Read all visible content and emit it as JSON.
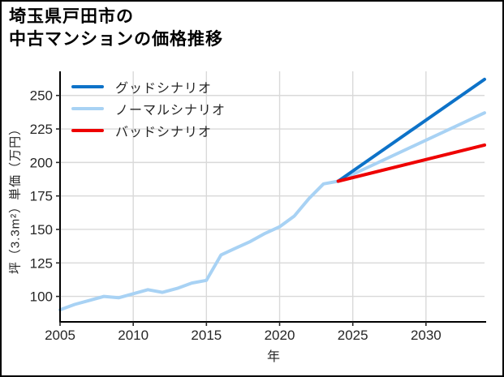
{
  "title": {
    "line1": "埼玉県戸田市の",
    "line2": "中古マンションの価格推移"
  },
  "chart_data": {
    "type": "line",
    "title": "埼玉県戸田市の中古マンションの価格推移",
    "xlabel": "年",
    "ylabel": "坪（3.3m²）単価（万円）",
    "xlim": [
      2005,
      2034
    ],
    "ylim": [
      81,
      268
    ],
    "xticks": [
      2005,
      2010,
      2015,
      2020,
      2025,
      2030
    ],
    "yticks": [
      100,
      125,
      150,
      175,
      200,
      225,
      250
    ],
    "grid": true,
    "grid_color": "#d9d9d9",
    "spine_color": "#000000",
    "tick_label_color": "#262626",
    "legend_position": "upper-left",
    "series": [
      {
        "name": "グッドシナリオ",
        "color": "#0d72c8",
        "z": 2,
        "x": [
          2024,
          2034
        ],
        "values": [
          186,
          262
        ]
      },
      {
        "name": "ノーマルシナリオ",
        "color": "#a8d2f4",
        "z": 1,
        "x": [
          2005,
          2006,
          2007,
          2008,
          2009,
          2010,
          2011,
          2012,
          2013,
          2014,
          2015,
          2016,
          2017,
          2018,
          2019,
          2020,
          2021,
          2022,
          2023,
          2024,
          2034
        ],
        "values": [
          90,
          94,
          97,
          100,
          99,
          102,
          105,
          103,
          106,
          110,
          112,
          131,
          136,
          141,
          147,
          152,
          160,
          173,
          184,
          186,
          237
        ]
      },
      {
        "name": "バッドシナリオ",
        "color": "#ee0000",
        "z": 3,
        "x": [
          2024,
          2034
        ],
        "values": [
          186,
          213
        ]
      }
    ]
  }
}
